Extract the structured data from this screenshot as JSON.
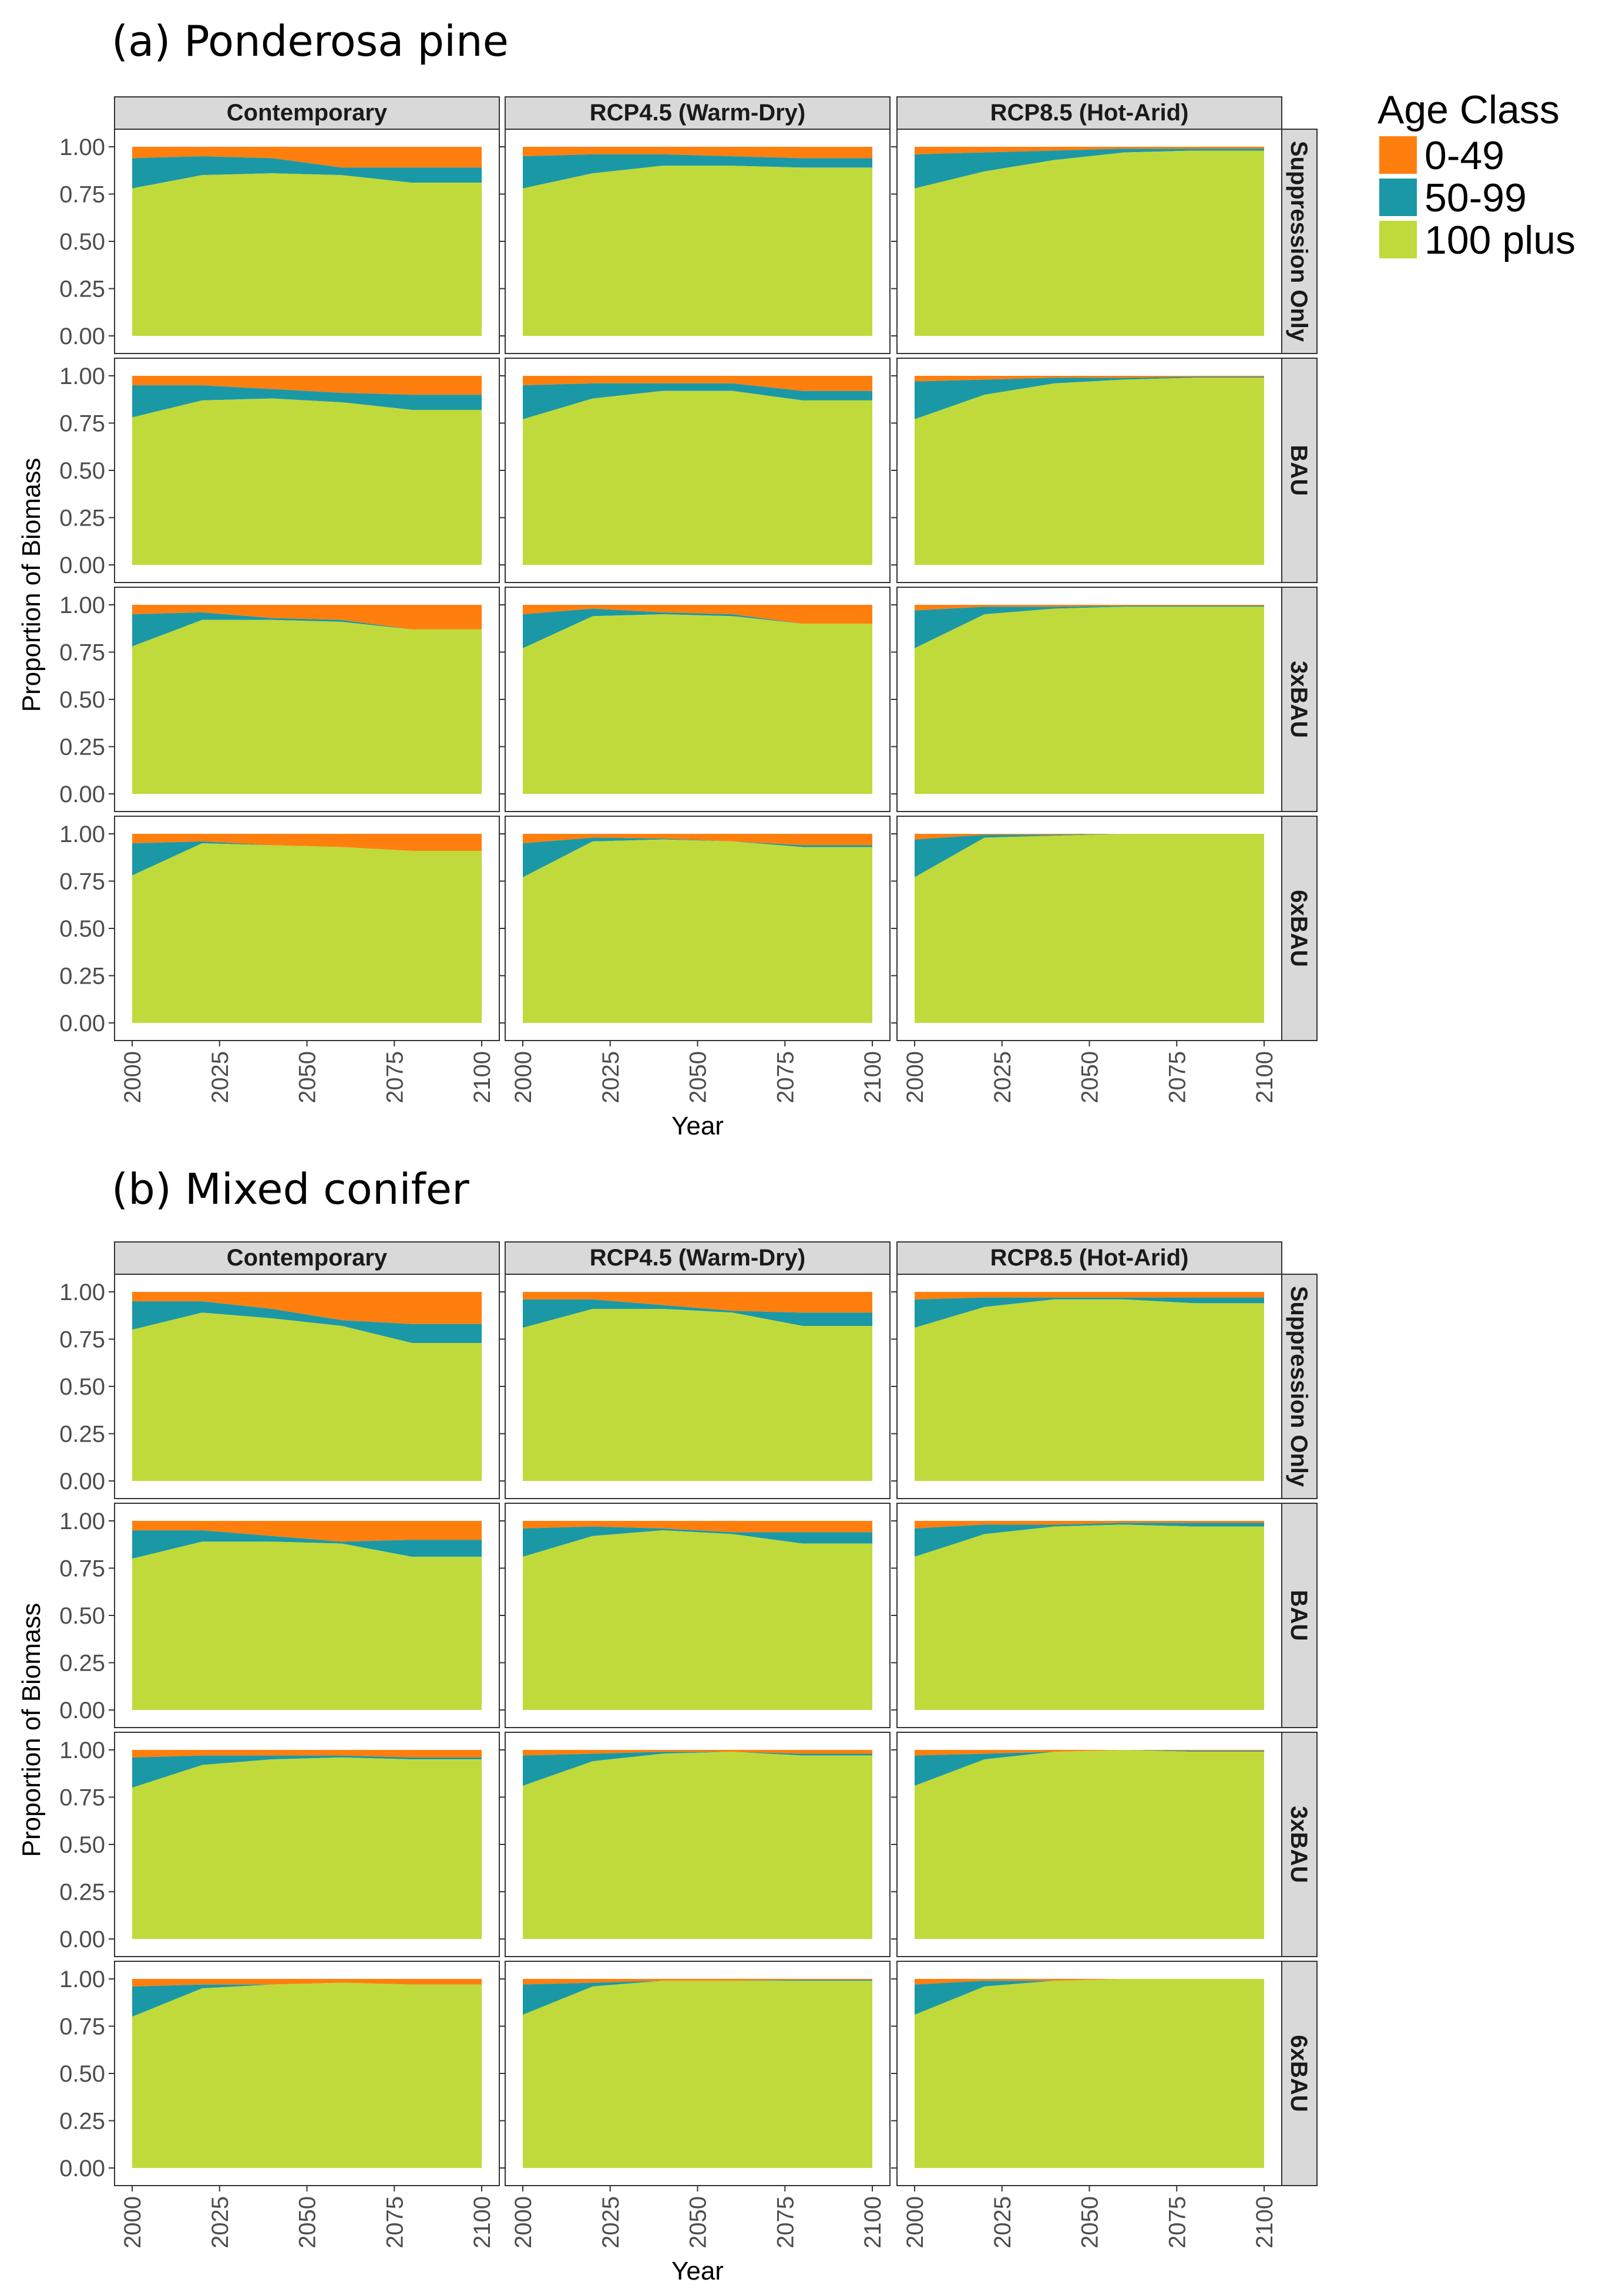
{
  "chart_data": {
    "type": "area",
    "subtype": "stacked-proportion-faceted",
    "xlabel": "Year",
    "ylabel": "Proportion of Biomass",
    "x": [
      2000,
      2020,
      2040,
      2060,
      2080,
      2100
    ],
    "xlim": [
      2000,
      2100
    ],
    "ylim": [
      0,
      1
    ],
    "x_ticks": [
      "2000",
      "2025",
      "2050",
      "2075",
      "2100"
    ],
    "y_ticks": [
      "0.00",
      "0.25",
      "0.50",
      "0.75",
      "1.00"
    ],
    "columns": [
      "Contemporary",
      "RCP4.5 (Warm-Dry)",
      "RCP8.5 (Hot-Arid)"
    ],
    "rows": [
      "Suppression Only",
      "BAU",
      "3xBAU",
      "6xBAU"
    ],
    "legend": {
      "title": "Age Class",
      "position": "top-right",
      "entries": [
        {
          "name": "0-49",
          "color": "#FF7F0E"
        },
        {
          "name": "50-99",
          "color": "#1B98A6"
        },
        {
          "name": "100 plus",
          "color": "#C0DA3B"
        }
      ]
    },
    "panels": [
      {
        "title": "(a) Ponderosa pine",
        "facets": [
          [
            {
              "p100": [
                0.78,
                0.85,
                0.86,
                0.85,
                0.81,
                0.81
              ],
              "p50_99": [
                0.16,
                0.1,
                0.08,
                0.04,
                0.08,
                0.08
              ]
            },
            {
              "p100": [
                0.78,
                0.86,
                0.9,
                0.9,
                0.89,
                0.89
              ],
              "p50_99": [
                0.17,
                0.1,
                0.06,
                0.05,
                0.05,
                0.05
              ]
            },
            {
              "p100": [
                0.78,
                0.87,
                0.93,
                0.97,
                0.98,
                0.98
              ],
              "p50_99": [
                0.18,
                0.1,
                0.05,
                0.02,
                0.01,
                0.01
              ]
            }
          ],
          [
            {
              "p100": [
                0.78,
                0.87,
                0.88,
                0.86,
                0.82,
                0.82
              ],
              "p50_99": [
                0.17,
                0.08,
                0.05,
                0.05,
                0.08,
                0.08
              ]
            },
            {
              "p100": [
                0.77,
                0.88,
                0.92,
                0.92,
                0.87,
                0.87
              ],
              "p50_99": [
                0.18,
                0.08,
                0.04,
                0.04,
                0.05,
                0.05
              ]
            },
            {
              "p100": [
                0.77,
                0.9,
                0.96,
                0.98,
                0.99,
                0.99
              ],
              "p50_99": [
                0.2,
                0.08,
                0.03,
                0.01,
                0.005,
                0.005
              ]
            }
          ],
          [
            {
              "p100": [
                0.78,
                0.92,
                0.92,
                0.91,
                0.87,
                0.87
              ],
              "p50_99": [
                0.17,
                0.04,
                0.01,
                0.01,
                0.0,
                0.0
              ]
            },
            {
              "p100": [
                0.77,
                0.94,
                0.95,
                0.94,
                0.9,
                0.9
              ],
              "p50_99": [
                0.18,
                0.04,
                0.01,
                0.01,
                0.0,
                0.0
              ]
            },
            {
              "p100": [
                0.77,
                0.95,
                0.98,
                0.99,
                0.99,
                0.99
              ],
              "p50_99": [
                0.2,
                0.04,
                0.01,
                0.005,
                0.005,
                0.005
              ]
            }
          ],
          [
            {
              "p100": [
                0.78,
                0.95,
                0.94,
                0.93,
                0.91,
                0.91
              ],
              "p50_99": [
                0.17,
                0.01,
                0.0,
                0.0,
                0.0,
                0.0
              ]
            },
            {
              "p100": [
                0.77,
                0.96,
                0.97,
                0.96,
                0.93,
                0.93
              ],
              "p50_99": [
                0.18,
                0.02,
                0.005,
                0.0,
                0.01,
                0.01
              ]
            },
            {
              "p100": [
                0.77,
                0.98,
                0.99,
                1.0,
                1.0,
                1.0
              ],
              "p50_99": [
                0.2,
                0.015,
                0.005,
                0.0,
                0.0,
                0.0
              ]
            }
          ]
        ]
      },
      {
        "title": "(b) Mixed conifer",
        "facets": [
          [
            {
              "p100": [
                0.8,
                0.89,
                0.86,
                0.82,
                0.73,
                0.73
              ],
              "p50_99": [
                0.15,
                0.06,
                0.05,
                0.03,
                0.1,
                0.1
              ]
            },
            {
              "p100": [
                0.81,
                0.91,
                0.91,
                0.89,
                0.82,
                0.82
              ],
              "p50_99": [
                0.15,
                0.05,
                0.02,
                0.01,
                0.07,
                0.07
              ]
            },
            {
              "p100": [
                0.81,
                0.92,
                0.96,
                0.96,
                0.94,
                0.94
              ],
              "p50_99": [
                0.15,
                0.05,
                0.01,
                0.01,
                0.03,
                0.03
              ]
            }
          ],
          [
            {
              "p100": [
                0.8,
                0.89,
                0.89,
                0.88,
                0.81,
                0.81
              ],
              "p50_99": [
                0.15,
                0.06,
                0.03,
                0.01,
                0.09,
                0.09
              ]
            },
            {
              "p100": [
                0.81,
                0.92,
                0.95,
                0.93,
                0.88,
                0.88
              ],
              "p50_99": [
                0.15,
                0.05,
                0.01,
                0.01,
                0.06,
                0.06
              ]
            },
            {
              "p100": [
                0.81,
                0.93,
                0.97,
                0.98,
                0.97,
                0.97
              ],
              "p50_99": [
                0.15,
                0.05,
                0.01,
                0.01,
                0.02,
                0.02
              ]
            }
          ],
          [
            {
              "p100": [
                0.8,
                0.92,
                0.95,
                0.96,
                0.95,
                0.95
              ],
              "p50_99": [
                0.16,
                0.05,
                0.02,
                0.01,
                0.01,
                0.01
              ]
            },
            {
              "p100": [
                0.81,
                0.94,
                0.98,
                0.99,
                0.97,
                0.97
              ],
              "p50_99": [
                0.16,
                0.04,
                0.01,
                0.0,
                0.01,
                0.01
              ]
            },
            {
              "p100": [
                0.81,
                0.95,
                0.99,
                1.0,
                0.99,
                0.99
              ],
              "p50_99": [
                0.16,
                0.03,
                0.0,
                0.0,
                0.005,
                0.005
              ]
            }
          ],
          [
            {
              "p100": [
                0.8,
                0.95,
                0.97,
                0.98,
                0.97,
                0.97
              ],
              "p50_99": [
                0.16,
                0.02,
                0.0,
                0.0,
                0.0,
                0.0
              ]
            },
            {
              "p100": [
                0.81,
                0.96,
                0.99,
                0.99,
                0.99,
                0.99
              ],
              "p50_99": [
                0.16,
                0.02,
                0.0,
                0.0,
                0.005,
                0.005
              ]
            },
            {
              "p100": [
                0.81,
                0.96,
                0.99,
                1.0,
                1.0,
                1.0
              ],
              "p50_99": [
                0.16,
                0.03,
                0.0,
                0.0,
                0.0,
                0.0
              ]
            }
          ]
        ]
      }
    ]
  }
}
